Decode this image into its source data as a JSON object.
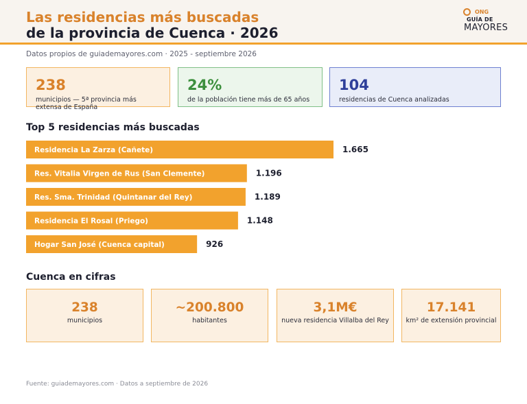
{
  "header": {
    "title_line1": "Las residencias más buscadas",
    "title_line2": "de la provincia de Cuenca · 2026",
    "logo": {
      "ong": "ONG",
      "guia": "GUÍA DE",
      "mayores": "MAYORES"
    },
    "subtitle": "Datos propios de guiademayores.com · 2025 - septiembre 2026"
  },
  "kpis": [
    {
      "value": "238",
      "label": "municipios — 5ª provincia más extensa de España"
    },
    {
      "value": "24%",
      "label": "de la población tiene más de 65 años"
    },
    {
      "value": "104",
      "label": "residencias de Cuenca analizadas"
    }
  ],
  "chart_data": {
    "type": "bar",
    "orientation": "horizontal",
    "title": "Top 5 residencias más buscadas",
    "categories": [
      "Residencia La Zarza (Cañete)",
      "Res. Vitalia Virgen de Rus (San Clemente)",
      "Res. Sma. Trinidad (Quintanar del Rey)",
      "Residencia El Rosal (Priego)",
      "Hogar San José (Cuenca capital)"
    ],
    "values": [
      1665,
      1196,
      1189,
      1148,
      926
    ],
    "value_labels": [
      "1.665",
      "1.196",
      "1.189",
      "1.148",
      "926"
    ],
    "bar_color": "#f2a22d",
    "grid": false,
    "legend": false
  },
  "cifras": {
    "title": "Cuenca en cifras",
    "cards": [
      {
        "value": "238",
        "label": "municipios"
      },
      {
        "value": "~200.800",
        "label": "habitantes"
      },
      {
        "value": "3,1M€",
        "label": "nueva residencia Villalba del Rey"
      },
      {
        "value": "17.141",
        "label": "km² de extensión provincial"
      }
    ]
  },
  "footer": "Fuente: guiademayores.com · Datos a septiembre de 2026"
}
